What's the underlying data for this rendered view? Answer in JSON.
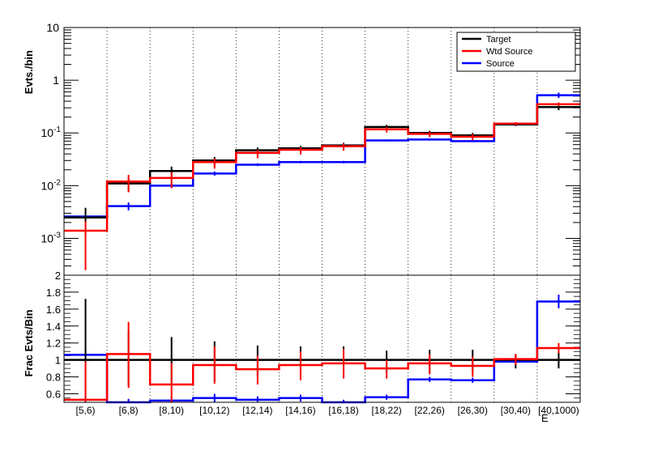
{
  "chart_data": [
    {
      "type": "line",
      "panel": "top",
      "step_histogram": true,
      "categories": [
        "[5,6)",
        "[6,8)",
        "[8,10)",
        "[10,12)",
        "[12,14)",
        "[14,16)",
        "[16,18)",
        "[18,22)",
        "[22,26)",
        "[26,30)",
        "[30,40)",
        "[40,1000)"
      ],
      "ylabel": "Evts./bin",
      "yscale": "log",
      "ylim": [
        0.0002,
        10
      ],
      "y_tick_labels": [
        {
          "label": "10",
          "value": 10
        },
        {
          "label": "1",
          "value": 1
        },
        {
          "label": "10",
          "sup": "-1",
          "value": 0.1
        },
        {
          "label": "10",
          "sup": "-2",
          "value": 0.01
        },
        {
          "label": "10",
          "sup": "-3",
          "value": 0.001
        }
      ],
      "grid": "vertical dashed",
      "legend_position": "top-right",
      "series": [
        {
          "name": "Target",
          "color": "#000000",
          "values": [
            0.0025,
            0.011,
            0.019,
            0.03,
            0.047,
            0.051,
            0.058,
            0.13,
            0.1,
            0.09,
            0.145,
            0.31
          ],
          "err_low": [
            0.0014,
            0.0035,
            0.005,
            0.006,
            0.008,
            0.008,
            0.009,
            0.015,
            0.012,
            0.011,
            0.01,
            0.04
          ],
          "err_high": [
            0.0013,
            0.003,
            0.004,
            0.005,
            0.006,
            0.006,
            0.007,
            0.012,
            0.01,
            0.01,
            0.01,
            0.035
          ]
        },
        {
          "name": "Wtd Source",
          "color": "#ff0000",
          "values": [
            0.0014,
            0.012,
            0.014,
            0.028,
            0.042,
            0.048,
            0.056,
            0.117,
            0.096,
            0.085,
            0.15,
            0.35
          ],
          "err_low": [
            0.00115,
            0.0045,
            0.005,
            0.007,
            0.009,
            0.009,
            0.01,
            0.015,
            0.013,
            0.012,
            0.01,
            0.03
          ],
          "err_high": [
            0.0007,
            0.004,
            0.004,
            0.005,
            0.006,
            0.006,
            0.007,
            0.012,
            0.01,
            0.01,
            0.01,
            0.03
          ]
        },
        {
          "name": "Source",
          "color": "#0000ff",
          "values": [
            0.0026,
            0.0041,
            0.01,
            0.017,
            0.025,
            0.028,
            0.028,
            0.072,
            0.075,
            0.07,
            0.145,
            0.52
          ],
          "err_low": [
            0.00015,
            0.0007,
            0.001,
            0.0015,
            0.0015,
            0.0015,
            0.0015,
            0.003,
            0.003,
            0.003,
            0.006,
            0.06
          ],
          "err_high": [
            0.00015,
            0.0007,
            0.001,
            0.0015,
            0.0015,
            0.0015,
            0.0015,
            0.003,
            0.003,
            0.003,
            0.006,
            0.06
          ]
        }
      ]
    },
    {
      "type": "line",
      "panel": "bottom",
      "step_histogram": true,
      "categories": [
        "[5,6)",
        "[6,8)",
        "[8,10)",
        "[10,12)",
        "[12,14)",
        "[14,16)",
        "[16,18)",
        "[18,22)",
        "[22,26)",
        "[26,30)",
        "[30,40)",
        "[40,1000)"
      ],
      "ylabel": "Frac Evts/Bin",
      "xlabel": "E",
      "ylim": [
        0.5,
        2
      ],
      "y_ticks": [
        0.6,
        0.8,
        1,
        1.2,
        1.4,
        1.6,
        1.8,
        2
      ],
      "y_tick_labels": [
        "0.6",
        "0.8",
        "1",
        "1.2",
        "1.4",
        "1.6",
        "1.8",
        "2"
      ],
      "grid": "vertical dashed",
      "series": [
        {
          "name": "Target",
          "color": "#000000",
          "values": [
            1,
            1,
            1,
            1,
            1,
            1,
            1,
            1,
            1,
            1,
            1,
            1
          ],
          "err_low": [
            0.5,
            0.3,
            0.3,
            0.25,
            0.2,
            0.2,
            0.2,
            0.15,
            0.15,
            0.15,
            0.1,
            0.1
          ],
          "err_high": [
            0.72,
            0.35,
            0.27,
            0.22,
            0.17,
            0.16,
            0.16,
            0.11,
            0.12,
            0.12,
            0.07,
            0.09
          ]
        },
        {
          "name": "Wtd Source",
          "color": "#ff0000",
          "values": [
            0.53,
            1.07,
            0.71,
            0.94,
            0.89,
            0.94,
            0.96,
            0.9,
            0.96,
            0.93,
            1.01,
            1.14
          ],
          "err_low": [
            0.45,
            0.4,
            0.25,
            0.22,
            0.18,
            0.18,
            0.18,
            0.12,
            0.13,
            0.13,
            0.07,
            0.06
          ],
          "err_high": [
            0.45,
            0.38,
            0.25,
            0.22,
            0.16,
            0.16,
            0.17,
            0.1,
            0.11,
            0.11,
            0.06,
            0.06
          ]
        },
        {
          "name": "Source",
          "color": "#0000ff",
          "values": [
            1.06,
            0.49,
            0.52,
            0.55,
            0.53,
            0.55,
            0.49,
            0.56,
            0.77,
            0.76,
            0.98,
            1.69
          ],
          "err_low": [
            0.06,
            0.05,
            0.05,
            0.05,
            0.04,
            0.04,
            0.04,
            0.03,
            0.03,
            0.03,
            0.04,
            0.08
          ],
          "err_high": [
            0.06,
            0.05,
            0.05,
            0.05,
            0.04,
            0.04,
            0.04,
            0.03,
            0.03,
            0.03,
            0.04,
            0.08
          ]
        }
      ]
    }
  ]
}
